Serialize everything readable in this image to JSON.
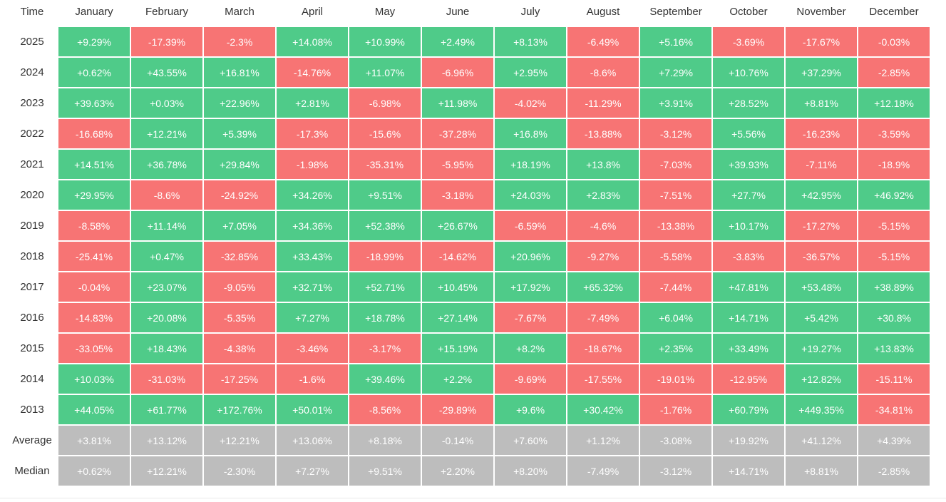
{
  "table": {
    "header": [
      "Time",
      "January",
      "February",
      "March",
      "April",
      "May",
      "June",
      "July",
      "August",
      "September",
      "October",
      "November",
      "December"
    ],
    "colors": {
      "positive": "#4fcb89",
      "negative": "#f77474",
      "summary": "#bdbdbd"
    },
    "rows": [
      {
        "label": "2025",
        "cells": [
          "+9.29%",
          "-17.39%",
          "-2.3%",
          "+14.08%",
          "+10.99%",
          "+2.49%",
          "+8.13%",
          "-6.49%",
          "+5.16%",
          "-3.69%",
          "-17.67%",
          "-0.03%"
        ]
      },
      {
        "label": "2024",
        "cells": [
          "+0.62%",
          "+43.55%",
          "+16.81%",
          "-14.76%",
          "+11.07%",
          "-6.96%",
          "+2.95%",
          "-8.6%",
          "+7.29%",
          "+10.76%",
          "+37.29%",
          "-2.85%"
        ]
      },
      {
        "label": "2023",
        "cells": [
          "+39.63%",
          "+0.03%",
          "+22.96%",
          "+2.81%",
          "-6.98%",
          "+11.98%",
          "-4.02%",
          "-11.29%",
          "+3.91%",
          "+28.52%",
          "+8.81%",
          "+12.18%"
        ]
      },
      {
        "label": "2022",
        "cells": [
          "-16.68%",
          "+12.21%",
          "+5.39%",
          "-17.3%",
          "-15.6%",
          "-37.28%",
          "+16.8%",
          "-13.88%",
          "-3.12%",
          "+5.56%",
          "-16.23%",
          "-3.59%"
        ]
      },
      {
        "label": "2021",
        "cells": [
          "+14.51%",
          "+36.78%",
          "+29.84%",
          "-1.98%",
          "-35.31%",
          "-5.95%",
          "+18.19%",
          "+13.8%",
          "-7.03%",
          "+39.93%",
          "-7.11%",
          "-18.9%"
        ]
      },
      {
        "label": "2020",
        "cells": [
          "+29.95%",
          "-8.6%",
          "-24.92%",
          "+34.26%",
          "+9.51%",
          "-3.18%",
          "+24.03%",
          "+2.83%",
          "-7.51%",
          "+27.7%",
          "+42.95%",
          "+46.92%"
        ]
      },
      {
        "label": "2019",
        "cells": [
          "-8.58%",
          "+11.14%",
          "+7.05%",
          "+34.36%",
          "+52.38%",
          "+26.67%",
          "-6.59%",
          "-4.6%",
          "-13.38%",
          "+10.17%",
          "-17.27%",
          "-5.15%"
        ]
      },
      {
        "label": "2018",
        "cells": [
          "-25.41%",
          "+0.47%",
          "-32.85%",
          "+33.43%",
          "-18.99%",
          "-14.62%",
          "+20.96%",
          "-9.27%",
          "-5.58%",
          "-3.83%",
          "-36.57%",
          "-5.15%"
        ]
      },
      {
        "label": "2017",
        "cells": [
          "-0.04%",
          "+23.07%",
          "-9.05%",
          "+32.71%",
          "+52.71%",
          "+10.45%",
          "+17.92%",
          "+65.32%",
          "-7.44%",
          "+47.81%",
          "+53.48%",
          "+38.89%"
        ]
      },
      {
        "label": "2016",
        "cells": [
          "-14.83%",
          "+20.08%",
          "-5.35%",
          "+7.27%",
          "+18.78%",
          "+27.14%",
          "-7.67%",
          "-7.49%",
          "+6.04%",
          "+14.71%",
          "+5.42%",
          "+30.8%"
        ]
      },
      {
        "label": "2015",
        "cells": [
          "-33.05%",
          "+18.43%",
          "-4.38%",
          "-3.46%",
          "-3.17%",
          "+15.19%",
          "+8.2%",
          "-18.67%",
          "+2.35%",
          "+33.49%",
          "+19.27%",
          "+13.83%"
        ]
      },
      {
        "label": "2014",
        "cells": [
          "+10.03%",
          "-31.03%",
          "-17.25%",
          "-1.6%",
          "+39.46%",
          "+2.2%",
          "-9.69%",
          "-17.55%",
          "-19.01%",
          "-12.95%",
          "+12.82%",
          "-15.11%"
        ]
      },
      {
        "label": "2013",
        "cells": [
          "+44.05%",
          "+61.77%",
          "+172.76%",
          "+50.01%",
          "-8.56%",
          "-29.89%",
          "+9.6%",
          "+30.42%",
          "-1.76%",
          "+60.79%",
          "+449.35%",
          "-34.81%"
        ]
      }
    ],
    "summary_rows": [
      {
        "label": "Average",
        "cells": [
          "+3.81%",
          "+13.12%",
          "+12.21%",
          "+13.06%",
          "+8.18%",
          "-0.14%",
          "+7.60%",
          "+1.12%",
          "-3.08%",
          "+19.92%",
          "+41.12%",
          "+4.39%"
        ]
      },
      {
        "label": "Median",
        "cells": [
          "+0.62%",
          "+12.21%",
          "-2.30%",
          "+7.27%",
          "+9.51%",
          "+2.20%",
          "+8.20%",
          "-7.49%",
          "-3.12%",
          "+14.71%",
          "+8.81%",
          "-2.85%"
        ]
      }
    ]
  }
}
